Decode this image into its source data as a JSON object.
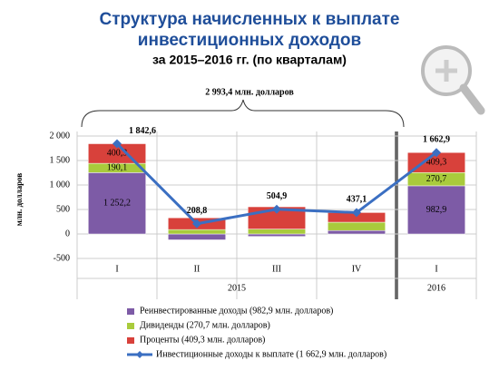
{
  "chart_data": {
    "type": "bar",
    "title": [
      "Структура начисленных к выплате",
      "инвестиционных доходов"
    ],
    "subtitle": "за 2015–2016 гг. (по кварталам)",
    "annotation": "2 993,4 млн. долларов",
    "y_label": "млн. долларов",
    "categories": [
      "I",
      "II",
      "III",
      "IV",
      "I"
    ],
    "groups": [
      "2015",
      "2016"
    ],
    "ylim": [
      -500,
      2000
    ],
    "yticks": [
      {
        "value": 2000,
        "label": "2 000"
      },
      {
        "value": 1500,
        "label": "1 500"
      },
      {
        "value": 1000,
        "label": "1 000"
      },
      500,
      0,
      -500
    ],
    "series": [
      {
        "name": "Реинвестированные доходы (982,9 млн. долларов)",
        "type": "bar",
        "color": "#7d5ba6",
        "values": [
          1252.2,
          -120,
          -50,
          70,
          982.9
        ],
        "value_labels": [
          "1 252,2",
          null,
          null,
          null,
          "982,9"
        ]
      },
      {
        "name": "Дивиденды (270,7 млн. долларов)",
        "type": "bar",
        "color": "#a9cb3c",
        "values": [
          190.1,
          90,
          100,
          170,
          270.7
        ],
        "value_labels": [
          "190,1",
          null,
          null,
          null,
          "270,7"
        ]
      },
      {
        "name": "Проценты (409,3 млн. долларов)",
        "type": "bar",
        "color": "#d8413b",
        "values": [
          400.3,
          240,
          455,
          197,
          409.3
        ],
        "value_labels": [
          "400,3",
          null,
          null,
          null,
          "409,3"
        ]
      },
      {
        "name": "Инвестиционные доходы к выплате (1 662,9 млн. долларов)",
        "type": "line",
        "color": "#3b6fc2",
        "values": [
          1842.6,
          208.8,
          504.9,
          437.1,
          1662.9
        ],
        "value_labels": [
          "1 842,6",
          "208,8",
          "504,9",
          "437,1",
          "1 662,9"
        ]
      }
    ]
  }
}
